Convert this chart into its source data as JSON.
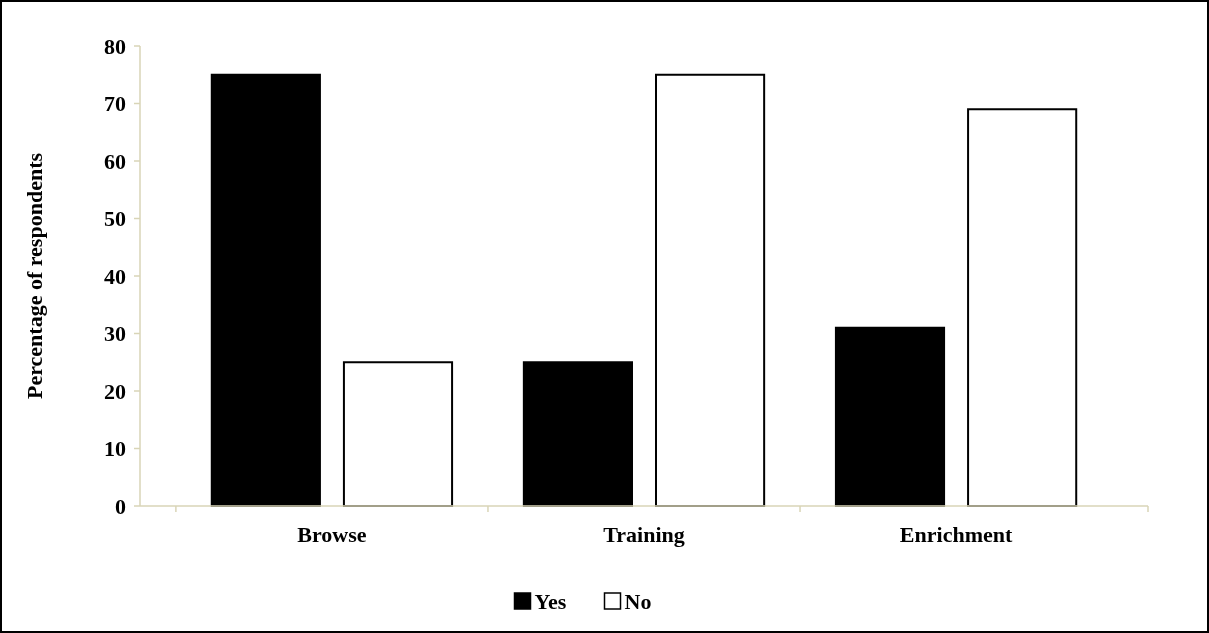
{
  "chart_data": {
    "type": "bar",
    "ylabel": "Percentage of respondents",
    "categories": [
      "Browse",
      "Training",
      "Enrichment"
    ],
    "series": [
      {
        "name": "Yes",
        "color": "#000000",
        "values": [
          75,
          25,
          31
        ]
      },
      {
        "name": "No",
        "color": "#ffffff",
        "values": [
          25,
          75,
          69
        ]
      }
    ],
    "ylim": [
      0,
      80
    ],
    "yticks": [
      0,
      10,
      20,
      30,
      40,
      50,
      60,
      70,
      80
    ],
    "grid": false,
    "legend": "bottom"
  }
}
